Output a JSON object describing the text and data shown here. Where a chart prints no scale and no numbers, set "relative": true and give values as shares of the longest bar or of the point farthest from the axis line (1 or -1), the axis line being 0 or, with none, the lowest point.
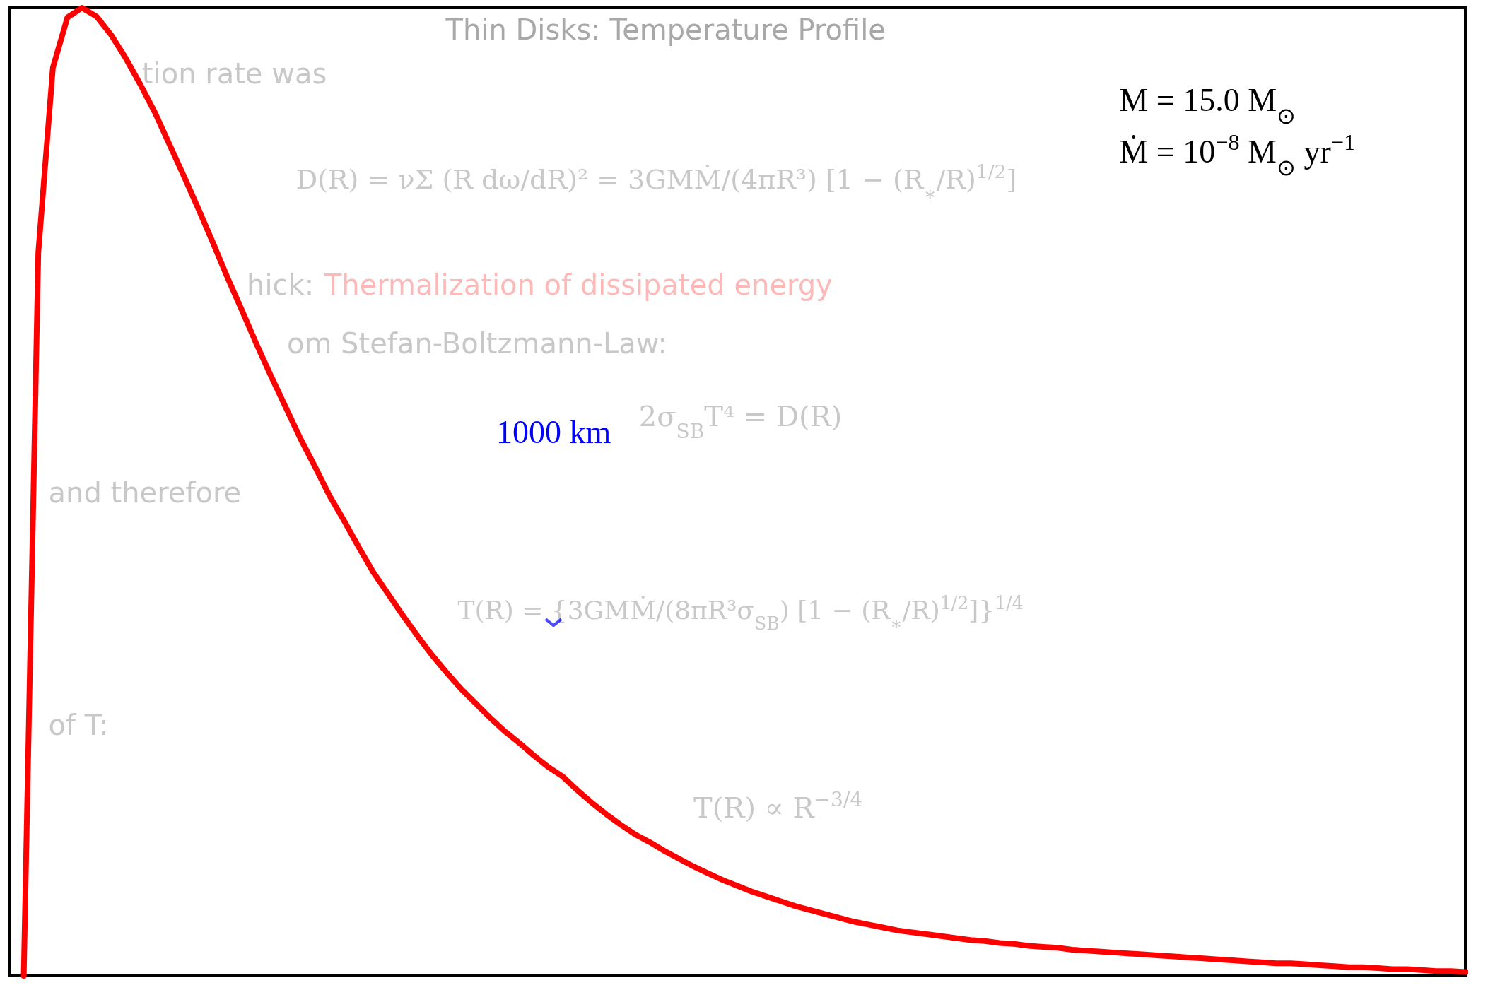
{
  "chart_data": {
    "type": "line",
    "relative": true,
    "categories": [
      null,
      null,
      null,
      null,
      null,
      null,
      null,
      null,
      null,
      null,
      null,
      null,
      null,
      null,
      null,
      null,
      null,
      null,
      null,
      null,
      null,
      null,
      null,
      null,
      null,
      null,
      null,
      null,
      null,
      null,
      null,
      null,
      null,
      null,
      null,
      null,
      null,
      null,
      null,
      null,
      null,
      null,
      null,
      null,
      null,
      null,
      null,
      null,
      null,
      null,
      null,
      null,
      null,
      null,
      null,
      null,
      null,
      null,
      null,
      null,
      null,
      null,
      null,
      null,
      null,
      null,
      null,
      null,
      null,
      null,
      null,
      null,
      null,
      null,
      null,
      null,
      null,
      null,
      null,
      null,
      null,
      null,
      null,
      null,
      null,
      null,
      null,
      null,
      null,
      null,
      null,
      null,
      null,
      null,
      null,
      null,
      null,
      null,
      null,
      null,
      null
    ],
    "series": [
      {
        "color": "#ff0000",
        "values": [
          null,
          0,
          0.747,
          0.938,
          0.99,
          1.0,
          0.991,
          0.972,
          0.948,
          0.921,
          0.892,
          0.859,
          0.826,
          0.792,
          0.757,
          0.721,
          0.687,
          0.652,
          0.619,
          0.587,
          0.555,
          0.526,
          0.496,
          0.47,
          0.443,
          0.417,
          0.395,
          0.373,
          0.352,
          0.332,
          0.314,
          0.297,
          0.282,
          0.267,
          0.253,
          0.241,
          0.228,
          0.216,
          0.206,
          0.192,
          0.179,
          0.167,
          0.156,
          0.146,
          0.138,
          0.129,
          0.121,
          0.113,
          0.106,
          0.099,
          0.093,
          0.087,
          0.082,
          0.077,
          0.072,
          0.068,
          0.064,
          0.06,
          0.056,
          0.053,
          0.05,
          0.047,
          0.045,
          0.043,
          0.041,
          0.039,
          0.037,
          0.036,
          0.034,
          0.033,
          0.031,
          0.03,
          0.029,
          0.027,
          0.026,
          0.025,
          0.024,
          0.023,
          0.022,
          0.021,
          0.02,
          0.019,
          0.018,
          0.017,
          0.016,
          0.015,
          0.014,
          0.013,
          0.013,
          0.012,
          0.011,
          0.01,
          0.009,
          0.009,
          0.008,
          0.007,
          0.007,
          0.006,
          0.005,
          0.005,
          0.004
        ]
      }
    ],
    "line_style": "solid",
    "annotations": [
      "M = 15.0 M$_{⊙}$",
      "Ṁ = 10$^{−8}$ M$_{⊙}$ yr$^{−1}$",
      "1000 km",
      "Thin Disks: Temperature Profile",
      "tion rate was",
      "D(R) = νΣ (R dω/dR)² = 3GMṀ/(4πR³) [1 − (R$_{∗}$/R)$^{1/2}$]",
      "hick:",
      "Thermalization of dissipated energy",
      "om Stefan-Boltzmann-Law:",
      "2σ$_{SB}$T⁴ = D(R)",
      "and therefore",
      "T(R) = {3GMṀ/(8πR³σ$_{SB}$) [1 − (R$_{∗}$/R)$^{1/2}$]}$^{1/4}$",
      "of T:",
      "T(R) ∝ R$^{−3/4}$"
    ]
  }
}
